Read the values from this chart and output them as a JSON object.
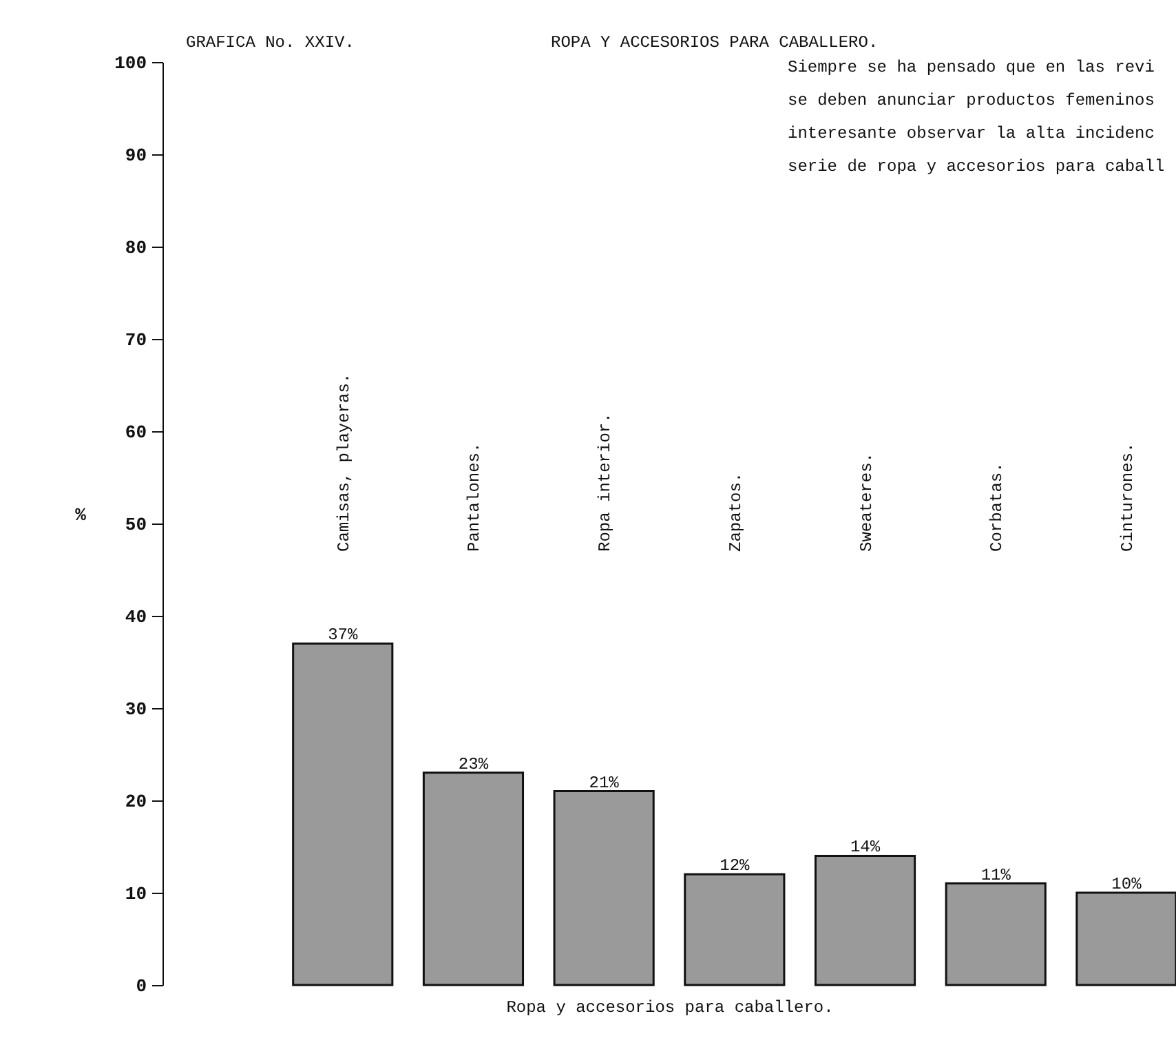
{
  "chart_data": {
    "type": "bar",
    "title": "ROPA Y ACCESORIOS PARA CABALLERO.",
    "xlabel": "Ropa y accesorios para caballero.",
    "ylabel": "%",
    "annotations": [
      "GRAFICA No. XXIV.",
      "Siempre se ha pensado que en las revi",
      "se deben anunciar productos femeninos",
      "interesante observar la alta incidenc",
      "serie de ropa y accesorios para caball"
    ],
    "categories": [
      "Camisas, playeras.",
      "Pantalones.",
      "Ropa interior.",
      "Zapatos.",
      "Sweateres.",
      "Corbatas.",
      "Cinturones."
    ],
    "values": [
      37,
      23,
      21,
      12,
      14,
      11,
      10
    ],
    "value_labels": [
      "37%",
      "23%",
      "21%",
      "12%",
      "14%",
      "11%",
      "10%"
    ],
    "color": "#9a9a9a",
    "ylim": [
      0,
      100
    ],
    "yticks": [
      0,
      10,
      20,
      30,
      40,
      50,
      60,
      70,
      80,
      90,
      100
    ],
    "grid": false
  }
}
